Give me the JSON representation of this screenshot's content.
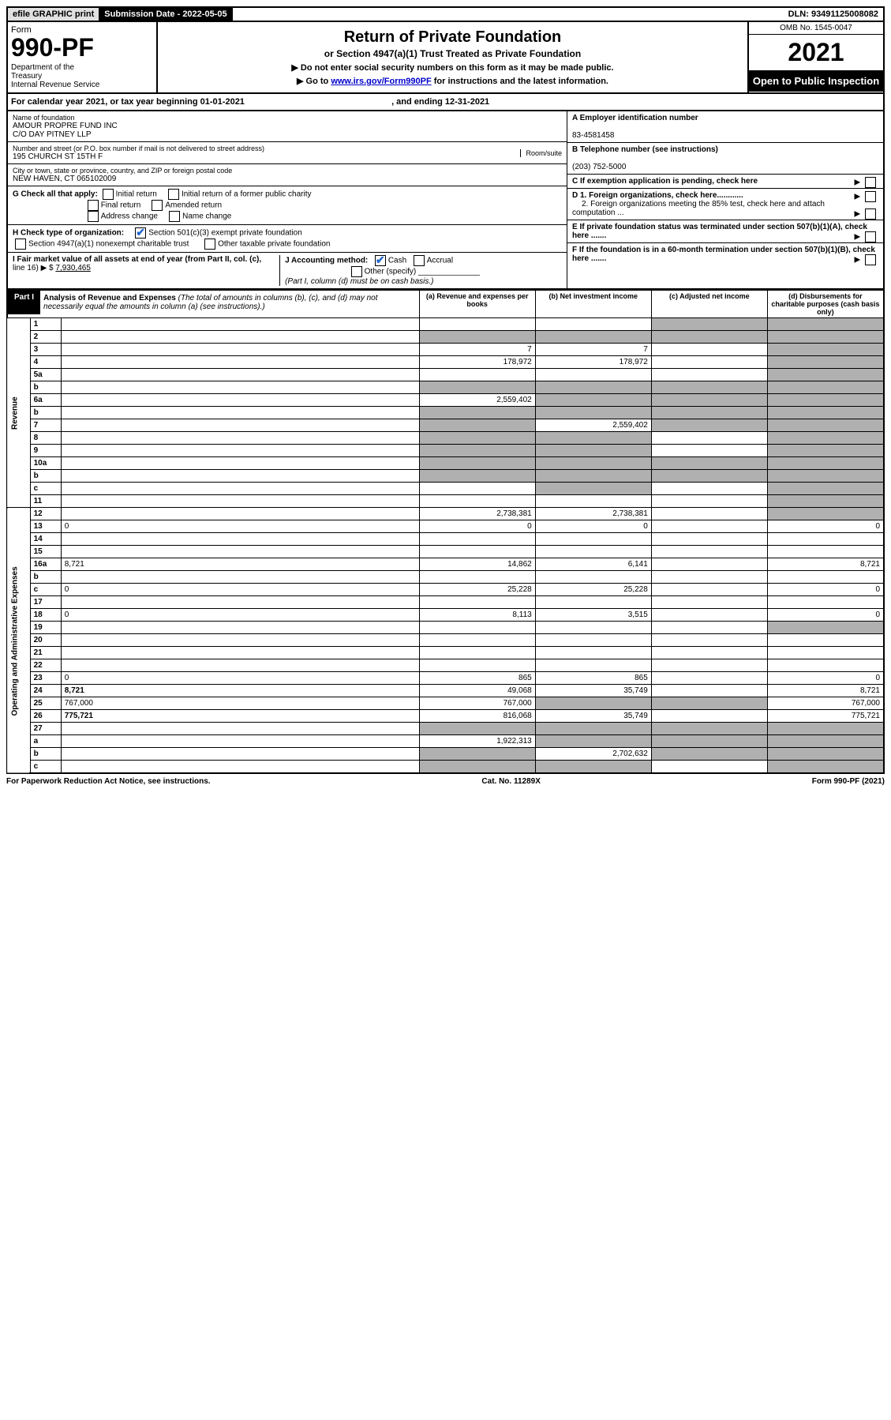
{
  "top_bar": {
    "efile": "efile GRAPHIC print",
    "submission": "Submission Date - 2022-05-05",
    "dln": "DLN: 93491125008082"
  },
  "header": {
    "form_label": "Form",
    "form_number": "990-PF",
    "dept": "Department of the Treasury\nInternal Revenue Service",
    "title": "Return of Private Foundation",
    "subtitle": "or Section 4947(a)(1) Trust Treated as Private Foundation",
    "note1": "▶ Do not enter social security numbers on this form as it may be made public.",
    "note2_pre": "▶ Go to ",
    "note2_link": "www.irs.gov/Form990PF",
    "note2_post": " for instructions and the latest information.",
    "omb": "OMB No. 1545-0047",
    "year": "2021",
    "open_public": "Open to Public Inspection"
  },
  "cal_year": {
    "text_pre": "For calendar year 2021, or tax year beginning ",
    "begin": "01-01-2021",
    "text_mid": " , and ending ",
    "end": "12-31-2021"
  },
  "entity": {
    "name_label": "Name of foundation",
    "name1": "AMOUR PROPRE FUND INC",
    "name2": "C/O DAY PITNEY LLP",
    "addr_label": "Number and street (or P.O. box number if mail is not delivered to street address)",
    "addr": "195 CHURCH ST 15TH F",
    "room_label": "Room/suite",
    "city_label": "City or town, state or province, country, and ZIP or foreign postal code",
    "city": "NEW HAVEN, CT  065102009",
    "ein_label": "A Employer identification number",
    "ein": "83-4581458",
    "phone_label": "B Telephone number (see instructions)",
    "phone": "(203) 752-5000",
    "c_label": "C If exemption application is pending, check here",
    "d1_label": "D 1. Foreign organizations, check here............",
    "d2_label": "2. Foreign organizations meeting the 85% test, check here and attach computation ...",
    "e_label": "E If private foundation status was terminated under section 507(b)(1)(A), check here .......",
    "f_label": "F If the foundation is in a 60-month termination under section 507(b)(1)(B), check here .......",
    "g_label": "G Check all that apply:",
    "g_opts": [
      "Initial return",
      "Initial return of a former public charity",
      "Final return",
      "Amended return",
      "Address change",
      "Name change"
    ],
    "h_label": "H Check type of organization:",
    "h_opt1": "Section 501(c)(3) exempt private foundation",
    "h_opt2": "Section 4947(a)(1) nonexempt charitable trust",
    "h_opt3": "Other taxable private foundation",
    "i_label": "I Fair market value of all assets at end of year (from Part II, col. (c),",
    "i_line": "line 16) ▶ $ ",
    "i_value": "7,930,465",
    "j_label": "J Accounting method:",
    "j_cash": "Cash",
    "j_accrual": "Accrual",
    "j_other": "Other (specify)",
    "j_note": "(Part I, column (d) must be on cash basis.)"
  },
  "part1": {
    "label": "Part I",
    "title": "Analysis of Revenue and Expenses",
    "title_note": " (The total of amounts in columns (b), (c), and (d) may not necessarily equal the amounts in column (a) (see instructions).)",
    "col_a": "(a) Revenue and expenses per books",
    "col_b": "(b) Net investment income",
    "col_c": "(c) Adjusted net income",
    "col_d": "(d) Disbursements for charitable purposes (cash basis only)"
  },
  "sections": {
    "revenue": "Revenue",
    "expenses": "Operating and Administrative Expenses"
  },
  "lines": [
    {
      "n": "1",
      "d": "",
      "a": "",
      "b": "",
      "c": "",
      "shade_c": true,
      "shade_d": true
    },
    {
      "n": "2",
      "d": "",
      "a": "",
      "b": "",
      "c": "",
      "shade_a": true,
      "shade_b": true,
      "shade_c": true,
      "shade_d": true
    },
    {
      "n": "3",
      "d": "",
      "a": "7",
      "b": "7",
      "c": "",
      "shade_d": true
    },
    {
      "n": "4",
      "d": "",
      "a": "178,972",
      "b": "178,972",
      "c": "",
      "shade_d": true
    },
    {
      "n": "5a",
      "d": "",
      "a": "",
      "b": "",
      "c": "",
      "shade_d": true
    },
    {
      "n": "b",
      "d": "",
      "a": "",
      "b": "",
      "c": "",
      "shade_a": true,
      "shade_b": true,
      "shade_c": true,
      "shade_d": true
    },
    {
      "n": "6a",
      "d": "",
      "a": "2,559,402",
      "b": "",
      "c": "",
      "shade_b": true,
      "shade_c": true,
      "shade_d": true
    },
    {
      "n": "b",
      "d": "",
      "a": "",
      "b": "",
      "c": "",
      "shade_a": true,
      "shade_b": true,
      "shade_c": true,
      "shade_d": true
    },
    {
      "n": "7",
      "d": "",
      "a": "",
      "b": "2,559,402",
      "c": "",
      "shade_a": true,
      "shade_c": true,
      "shade_d": true
    },
    {
      "n": "8",
      "d": "",
      "a": "",
      "b": "",
      "c": "",
      "shade_a": true,
      "shade_b": true,
      "shade_d": true
    },
    {
      "n": "9",
      "d": "",
      "a": "",
      "b": "",
      "c": "",
      "shade_a": true,
      "shade_b": true,
      "shade_d": true
    },
    {
      "n": "10a",
      "d": "",
      "a": "",
      "b": "",
      "c": "",
      "shade_a": true,
      "shade_b": true,
      "shade_c": true,
      "shade_d": true
    },
    {
      "n": "b",
      "d": "",
      "a": "",
      "b": "",
      "c": "",
      "shade_a": true,
      "shade_b": true,
      "shade_c": true,
      "shade_d": true
    },
    {
      "n": "c",
      "d": "",
      "a": "",
      "b": "",
      "c": "",
      "shade_b": true,
      "shade_d": true
    },
    {
      "n": "11",
      "d": "",
      "a": "",
      "b": "",
      "c": "",
      "shade_d": true
    },
    {
      "n": "12",
      "d": "",
      "a": "2,738,381",
      "b": "2,738,381",
      "c": "",
      "bold": true,
      "shade_d": true
    },
    {
      "n": "13",
      "d": "0",
      "a": "0",
      "b": "0",
      "c": ""
    },
    {
      "n": "14",
      "d": "",
      "a": "",
      "b": "",
      "c": ""
    },
    {
      "n": "15",
      "d": "",
      "a": "",
      "b": "",
      "c": ""
    },
    {
      "n": "16a",
      "d": "8,721",
      "a": "14,862",
      "b": "6,141",
      "c": ""
    },
    {
      "n": "b",
      "d": "",
      "a": "",
      "b": "",
      "c": ""
    },
    {
      "n": "c",
      "d": "0",
      "a": "25,228",
      "b": "25,228",
      "c": ""
    },
    {
      "n": "17",
      "d": "",
      "a": "",
      "b": "",
      "c": ""
    },
    {
      "n": "18",
      "d": "0",
      "a": "8,113",
      "b": "3,515",
      "c": ""
    },
    {
      "n": "19",
      "d": "",
      "a": "",
      "b": "",
      "c": "",
      "shade_d": true
    },
    {
      "n": "20",
      "d": "",
      "a": "",
      "b": "",
      "c": ""
    },
    {
      "n": "21",
      "d": "",
      "a": "",
      "b": "",
      "c": ""
    },
    {
      "n": "22",
      "d": "",
      "a": "",
      "b": "",
      "c": ""
    },
    {
      "n": "23",
      "d": "0",
      "a": "865",
      "b": "865",
      "c": ""
    },
    {
      "n": "24",
      "d": "8,721",
      "a": "49,068",
      "b": "35,749",
      "c": "",
      "bold": true
    },
    {
      "n": "25",
      "d": "767,000",
      "a": "767,000",
      "b": "",
      "c": "",
      "shade_b": true,
      "shade_c": true
    },
    {
      "n": "26",
      "d": "775,721",
      "a": "816,068",
      "b": "35,749",
      "c": "",
      "bold": true
    },
    {
      "n": "27",
      "d": "",
      "a": "",
      "b": "",
      "c": "",
      "shade_a": true,
      "shade_b": true,
      "shade_c": true,
      "shade_d": true
    },
    {
      "n": "a",
      "d": "",
      "a": "1,922,313",
      "b": "",
      "c": "",
      "bold": true,
      "shade_b": true,
      "shade_c": true,
      "shade_d": true
    },
    {
      "n": "b",
      "d": "",
      "a": "",
      "b": "2,702,632",
      "c": "",
      "bold": true,
      "shade_a": true,
      "shade_c": true,
      "shade_d": true
    },
    {
      "n": "c",
      "d": "",
      "a": "",
      "b": "",
      "c": "",
      "bold": true,
      "shade_a": true,
      "shade_b": true,
      "shade_d": true
    }
  ],
  "footer": {
    "left": "For Paperwork Reduction Act Notice, see instructions.",
    "center": "Cat. No. 11289X",
    "right": "Form 990-PF (2021)"
  },
  "colors": {
    "link": "#0000cc",
    "check": "#2266cc",
    "shade": "#b0b0b0"
  }
}
